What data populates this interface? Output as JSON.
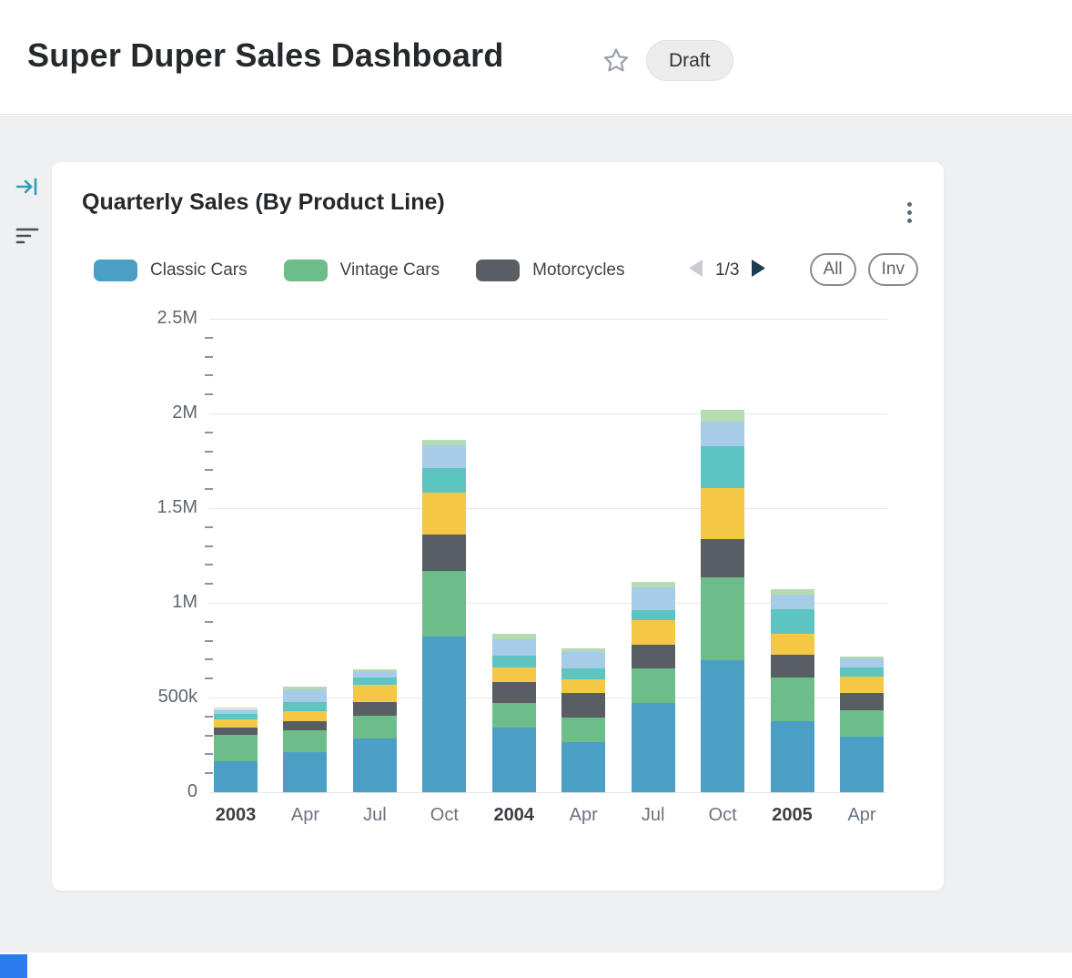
{
  "header": {
    "title": "Super Duper Sales Dashboard",
    "badge": "Draft"
  },
  "icons": {
    "star": "star-icon",
    "collapse": "collapse-panel-icon",
    "filter": "filter-icon",
    "kebab": "kebab-menu-icon",
    "prev": "prev-page-icon",
    "next": "next-page-icon"
  },
  "card": {
    "title": "Quarterly Sales (By Product Line)",
    "legend_pagination": {
      "current": "1/3"
    },
    "filters": {
      "all_label": "All",
      "inv_label": "Inv"
    }
  },
  "chart_data": {
    "type": "bar",
    "stacked": true,
    "title": "Quarterly Sales (By Product Line)",
    "categories": [
      "2003",
      "Apr",
      "Jul",
      "Oct",
      "2004",
      "Apr",
      "Jul",
      "Oct",
      "2005",
      "Apr"
    ],
    "bold_categories": [
      "2003",
      "2004",
      "2005"
    ],
    "ylim": [
      0,
      2500000
    ],
    "y_tick_labels": [
      "2.5M",
      "2M",
      "1.5M",
      "1M",
      "500k",
      "0"
    ],
    "y_major_step": 500000,
    "y_minor_step": 100000,
    "grid": true,
    "legend_position": "top",
    "legend_visible": [
      {
        "name": "Classic Cars",
        "color": "#4b9fc5"
      },
      {
        "name": "Vintage Cars",
        "color": "#6cbd8a"
      },
      {
        "name": "Motorcycles",
        "color": "#585e63"
      }
    ],
    "series": [
      {
        "name": "Classic Cars",
        "color": "#4b9fc5",
        "values": [
          165000,
          210000,
          285000,
          820000,
          340000,
          265000,
          470000,
          695000,
          375000,
          295000
        ]
      },
      {
        "name": "Vintage Cars",
        "color": "#6cbd8a",
        "values": [
          140000,
          115000,
          120000,
          350000,
          130000,
          130000,
          185000,
          440000,
          230000,
          140000
        ]
      },
      {
        "name": "Motorcycles",
        "color": "#585e63",
        "values": [
          35000,
          50000,
          70000,
          190000,
          110000,
          130000,
          125000,
          200000,
          120000,
          90000
        ]
      },
      {
        "name": "unlabeled-yellow",
        "color": "#f4c845",
        "values": [
          45000,
          55000,
          90000,
          220000,
          80000,
          70000,
          130000,
          270000,
          110000,
          85000
        ]
      },
      {
        "name": "unlabeled-teal",
        "color": "#5cc5c2",
        "values": [
          30000,
          45000,
          40000,
          130000,
          60000,
          60000,
          50000,
          220000,
          130000,
          50000
        ]
      },
      {
        "name": "unlabeled-lightblue",
        "color": "#a6cce7",
        "values": [
          25000,
          70000,
          35000,
          120000,
          90000,
          85000,
          120000,
          130000,
          80000,
          45000
        ]
      },
      {
        "name": "unlabeled-lightgreen",
        "color": "#b5dbb1",
        "values": [
          8000,
          15000,
          8000,
          30000,
          25000,
          20000,
          30000,
          65000,
          25000,
          10000
        ]
      }
    ]
  }
}
